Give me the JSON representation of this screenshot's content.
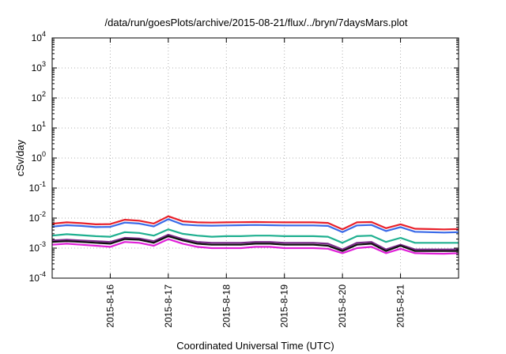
{
  "chart_data": {
    "type": "line",
    "title": "/data/run/goesPlots/archive/2015-08-21/flux/../bryn/7daysMars.plot",
    "xlabel": "Coordinated Universal Time (UTC)",
    "ylabel": "cSv/day",
    "yscale": "log",
    "ylim": [
      0.0001,
      10000
    ],
    "xlim": [
      "2015-08-15T00:00",
      "2015-08-22T00:00"
    ],
    "grid": true,
    "legend": "none",
    "y_ticks": [
      {
        "value": 0.0001,
        "base": "10",
        "exp": "-4"
      },
      {
        "value": 0.001,
        "base": "10",
        "exp": "-3"
      },
      {
        "value": 0.01,
        "base": "10",
        "exp": "-2"
      },
      {
        "value": 0.1,
        "base": "10",
        "exp": "-1"
      },
      {
        "value": 1,
        "base": "10",
        "exp": "0"
      },
      {
        "value": 10,
        "base": "10",
        "exp": "1"
      },
      {
        "value": 100,
        "base": "10",
        "exp": "2"
      },
      {
        "value": 1000,
        "base": "10",
        "exp": "3"
      },
      {
        "value": 10000,
        "base": "10",
        "exp": "4"
      }
    ],
    "x_ticks": [
      "2015-8-16",
      "2015-8-17",
      "2015-8-18",
      "2015-8-19",
      "2015-8-20",
      "2015-8-21"
    ],
    "x": [
      "2015-08-15 00:00",
      "2015-08-15 06:00",
      "2015-08-15 12:00",
      "2015-08-15 18:00",
      "2015-08-16 00:00",
      "2015-08-16 06:00",
      "2015-08-16 12:00",
      "2015-08-16 18:00",
      "2015-08-17 00:00",
      "2015-08-17 06:00",
      "2015-08-17 12:00",
      "2015-08-17 18:00",
      "2015-08-18 00:00",
      "2015-08-18 06:00",
      "2015-08-18 12:00",
      "2015-08-18 18:00",
      "2015-08-19 00:00",
      "2015-08-19 06:00",
      "2015-08-19 12:00",
      "2015-08-19 18:00",
      "2015-08-20 00:00",
      "2015-08-20 06:00",
      "2015-08-20 12:00",
      "2015-08-20 18:00",
      "2015-08-21 00:00",
      "2015-08-21 06:00",
      "2015-08-21 12:00",
      "2015-08-21 18:00",
      "2015-08-22 00:00"
    ],
    "series": [
      {
        "color": "#e8202a",
        "values": [
          0.0065,
          0.0072,
          0.0068,
          0.0062,
          0.0063,
          0.0088,
          0.0082,
          0.0066,
          0.0115,
          0.0078,
          0.0072,
          0.0071,
          0.0072,
          0.0073,
          0.0074,
          0.0073,
          0.0072,
          0.0072,
          0.0072,
          0.0069,
          0.0042,
          0.0072,
          0.0074,
          0.0046,
          0.0062,
          0.0044,
          0.0043,
          0.0042,
          0.0043
        ]
      },
      {
        "color": "#3a6ae8",
        "values": [
          0.0052,
          0.0058,
          0.0055,
          0.005,
          0.0051,
          0.0071,
          0.0066,
          0.0053,
          0.0092,
          0.0061,
          0.0057,
          0.0056,
          0.0057,
          0.0058,
          0.0059,
          0.0058,
          0.0057,
          0.0057,
          0.0057,
          0.0055,
          0.0034,
          0.0057,
          0.0059,
          0.0037,
          0.005,
          0.0035,
          0.0034,
          0.0033,
          0.0034
        ]
      },
      {
        "color": "#20b090",
        "values": [
          0.0026,
          0.0029,
          0.0027,
          0.0025,
          0.0024,
          0.0034,
          0.0032,
          0.0026,
          0.0042,
          0.003,
          0.0026,
          0.0024,
          0.0025,
          0.0025,
          0.0026,
          0.0026,
          0.0025,
          0.0025,
          0.0025,
          0.0024,
          0.0015,
          0.0025,
          0.0026,
          0.0016,
          0.0022,
          0.0015,
          0.0015,
          0.0015,
          0.0015
        ]
      },
      {
        "color": "#7a2a8a",
        "values": [
          0.0018,
          0.0019,
          0.0018,
          0.0017,
          0.0016,
          0.0022,
          0.0021,
          0.0017,
          0.0028,
          0.002,
          0.0016,
          0.0015,
          0.0015,
          0.0015,
          0.0016,
          0.0016,
          0.0015,
          0.0015,
          0.0015,
          0.0014,
          0.0009,
          0.0015,
          0.0016,
          0.0009,
          0.0013,
          0.0009,
          0.0009,
          0.0009,
          0.0009
        ]
      },
      {
        "color": "#101010",
        "values": [
          0.0016,
          0.0017,
          0.0016,
          0.0015,
          0.0014,
          0.002,
          0.0019,
          0.0015,
          0.0025,
          0.0018,
          0.0014,
          0.0013,
          0.0013,
          0.0013,
          0.0014,
          0.0014,
          0.0013,
          0.0013,
          0.0013,
          0.0012,
          0.0008,
          0.0013,
          0.0014,
          0.0008,
          0.0012,
          0.0008,
          0.0008,
          0.0008,
          0.0008
        ]
      },
      {
        "color": "#e020d8",
        "values": [
          0.0013,
          0.0014,
          0.0013,
          0.0012,
          0.0011,
          0.0016,
          0.0015,
          0.0012,
          0.002,
          0.0014,
          0.0011,
          0.001,
          0.001,
          0.001,
          0.0011,
          0.0011,
          0.001,
          0.001,
          0.001,
          0.00095,
          0.00068,
          0.001,
          0.0011,
          0.00068,
          0.00095,
          0.00068,
          0.00066,
          0.00065,
          0.00068
        ]
      }
    ]
  }
}
